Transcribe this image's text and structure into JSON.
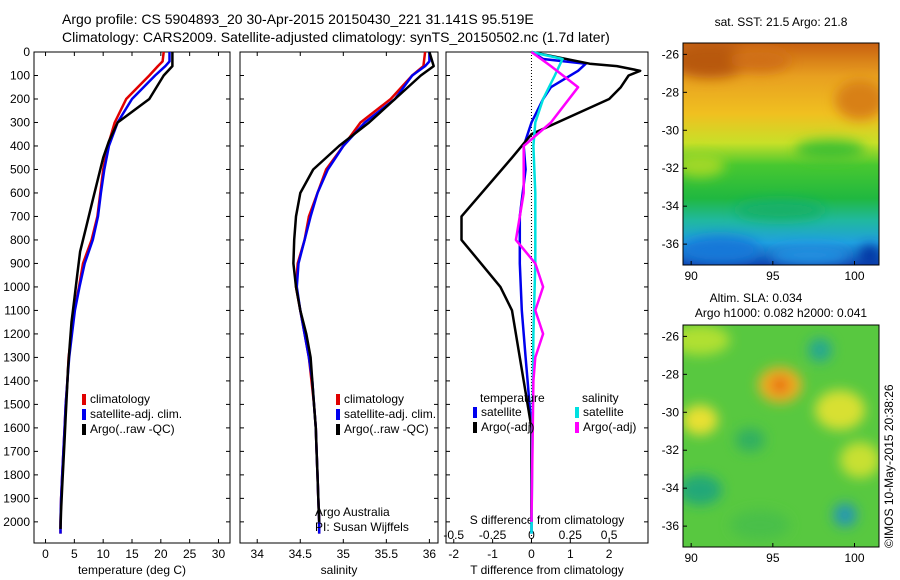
{
  "header": {
    "line1": "Argo profile: CS 5904893_20 30-Apr-2015 20150430_221 31.141S 95.519E",
    "line2": "Climatology: CARS2009. Satellite-adjusted climatology: synTS_20150502.nc (1.7d later)"
  },
  "colors": {
    "climatology": "#e00000",
    "satellite": "#0000ee",
    "argo": "#000000",
    "sat_s": "#00e0e0",
    "argo_s": "#ff00ff"
  },
  "chart_data": [
    {
      "type": "line",
      "id": "temperature",
      "xlabel": "temperature (deg C)",
      "ylabel": "",
      "xlim": [
        -2,
        32
      ],
      "ylim": [
        2090,
        0
      ],
      "xticks": [
        0,
        5,
        10,
        15,
        20,
        25,
        30
      ],
      "yticks": [
        0,
        100,
        200,
        300,
        400,
        500,
        600,
        700,
        800,
        900,
        1000,
        1100,
        1200,
        1300,
        1400,
        1500,
        1600,
        1700,
        1800,
        1900,
        2000
      ],
      "legend": [
        "climatology",
        "satellite-adj. clim.",
        "Argo(..raw -QC)"
      ],
      "series": [
        {
          "name": "climatology",
          "color": "#e00000",
          "points": [
            [
              20.5,
              0
            ],
            [
              20.3,
              40
            ],
            [
              19.5,
              60
            ],
            [
              18,
              100
            ],
            [
              14,
              200
            ],
            [
              12,
              300
            ],
            [
              10.8,
              400
            ],
            [
              10,
              500
            ],
            [
              9.5,
              600
            ],
            [
              9,
              700
            ],
            [
              8,
              800
            ],
            [
              6.5,
              900
            ],
            [
              5.8,
              1000
            ],
            [
              5,
              1100
            ],
            [
              4.5,
              1200
            ],
            [
              4,
              1300
            ],
            [
              3.8,
              1400
            ],
            [
              3.5,
              1500
            ],
            [
              3.3,
              1600
            ],
            [
              3.1,
              1700
            ],
            [
              2.9,
              1800
            ],
            [
              2.7,
              1900
            ],
            [
              2.6,
              2000
            ],
            [
              2.6,
              2050
            ]
          ]
        },
        {
          "name": "satellite-adj. clim.",
          "color": "#0000ee",
          "points": [
            [
              21.5,
              0
            ],
            [
              21.5,
              40
            ],
            [
              20.8,
              60
            ],
            [
              19,
              100
            ],
            [
              15,
              200
            ],
            [
              12.5,
              300
            ],
            [
              11,
              400
            ],
            [
              10.2,
              500
            ],
            [
              9.6,
              600
            ],
            [
              9.1,
              700
            ],
            [
              8.2,
              800
            ],
            [
              6.8,
              900
            ],
            [
              5.9,
              1000
            ],
            [
              5.1,
              1100
            ],
            [
              4.6,
              1200
            ],
            [
              4.1,
              1300
            ],
            [
              3.8,
              1400
            ],
            [
              3.5,
              1500
            ],
            [
              3.3,
              1600
            ],
            [
              3.1,
              1700
            ],
            [
              2.9,
              1800
            ],
            [
              2.7,
              1900
            ],
            [
              2.6,
              2000
            ],
            [
              2.6,
              2050
            ]
          ]
        },
        {
          "name": "Argo(..raw -QC)",
          "color": "#000000",
          "points": [
            [
              22,
              0
            ],
            [
              22,
              60
            ],
            [
              20.5,
              100
            ],
            [
              18,
              200
            ],
            [
              12.5,
              300
            ],
            [
              11,
              380
            ],
            [
              10,
              450
            ],
            [
              9,
              550
            ],
            [
              8,
              650
            ],
            [
              7,
              750
            ],
            [
              6,
              850
            ],
            [
              5.5,
              950
            ],
            [
              5,
              1050
            ],
            [
              4.5,
              1150
            ],
            [
              4.2,
              1250
            ],
            [
              3.9,
              1350
            ],
            [
              3.7,
              1450
            ],
            [
              3.5,
              1550
            ],
            [
              3.3,
              1650
            ],
            [
              3.1,
              1750
            ],
            [
              2.9,
              1850
            ],
            [
              2.7,
              1950
            ],
            [
              2.6,
              2030
            ]
          ]
        }
      ]
    },
    {
      "type": "line",
      "id": "salinity",
      "xlabel": "salinity",
      "ylabel": "",
      "xlim": [
        33.8,
        36.1
      ],
      "ylim": [
        2090,
        0
      ],
      "xticks": [
        34,
        34.5,
        35,
        35.5,
        36
      ],
      "legend": [
        "climatology",
        "satellite-adj. clim.",
        "Argo(..raw -QC)"
      ],
      "annotation": [
        "Argo Australia",
        "PI: Susan Wijffels"
      ],
      "series": [
        {
          "name": "climatology",
          "color": "#e00000",
          "points": [
            [
              35.95,
              0
            ],
            [
              35.93,
              60
            ],
            [
              35.8,
              100
            ],
            [
              35.55,
              200
            ],
            [
              35.2,
              300
            ],
            [
              35.0,
              400
            ],
            [
              34.8,
              500
            ],
            [
              34.7,
              600
            ],
            [
              34.6,
              700
            ],
            [
              34.55,
              800
            ],
            [
              34.47,
              900
            ],
            [
              34.45,
              1000
            ],
            [
              34.5,
              1100
            ],
            [
              34.55,
              1200
            ],
            [
              34.6,
              1300
            ],
            [
              34.63,
              1400
            ],
            [
              34.66,
              1500
            ],
            [
              34.68,
              1600
            ],
            [
              34.69,
              1700
            ],
            [
              34.7,
              1800
            ],
            [
              34.71,
              1900
            ],
            [
              34.72,
              2000
            ],
            [
              34.72,
              2050
            ]
          ]
        },
        {
          "name": "satellite-adj. clim.",
          "color": "#0000ee",
          "points": [
            [
              36,
              0
            ],
            [
              36,
              40
            ],
            [
              35.95,
              60
            ],
            [
              35.8,
              100
            ],
            [
              35.6,
              200
            ],
            [
              35.25,
              300
            ],
            [
              35.0,
              400
            ],
            [
              34.82,
              500
            ],
            [
              34.7,
              600
            ],
            [
              34.62,
              700
            ],
            [
              34.55,
              800
            ],
            [
              34.48,
              900
            ],
            [
              34.46,
              1000
            ],
            [
              34.5,
              1100
            ],
            [
              34.55,
              1200
            ],
            [
              34.6,
              1300
            ],
            [
              34.64,
              1400
            ],
            [
              34.66,
              1500
            ],
            [
              34.68,
              1600
            ],
            [
              34.69,
              1700
            ],
            [
              34.7,
              1800
            ],
            [
              34.71,
              1900
            ],
            [
              34.72,
              2000
            ],
            [
              34.72,
              2050
            ]
          ]
        },
        {
          "name": "Argo(..raw -QC)",
          "color": "#000000",
          "points": [
            [
              36,
              0
            ],
            [
              36.05,
              60
            ],
            [
              35.9,
              100
            ],
            [
              35.6,
              200
            ],
            [
              35.3,
              300
            ],
            [
              34.95,
              400
            ],
            [
              34.65,
              500
            ],
            [
              34.5,
              600
            ],
            [
              34.45,
              700
            ],
            [
              34.43,
              800
            ],
            [
              34.42,
              900
            ],
            [
              34.45,
              1000
            ],
            [
              34.5,
              1100
            ],
            [
              34.57,
              1200
            ],
            [
              34.62,
              1300
            ],
            [
              34.64,
              1400
            ],
            [
              34.66,
              1500
            ],
            [
              34.68,
              1600
            ],
            [
              34.69,
              1700
            ],
            [
              34.7,
              1800
            ],
            [
              34.71,
              1900
            ],
            [
              34.72,
              2000
            ]
          ]
        }
      ]
    },
    {
      "type": "line",
      "id": "difference",
      "xlabel": "T difference from climatology",
      "xlabel2": "S difference from climatology",
      "xlim": [
        -2.2,
        3.0
      ],
      "ylim": [
        2090,
        0
      ],
      "xticks_T": [
        -2,
        -1,
        0,
        1,
        2
      ],
      "xticks_S": [
        -0.5,
        -0.25,
        0,
        0.25,
        0.5
      ],
      "legend_temperature_title": "temperature",
      "legend_salinity_title": "salinity",
      "legend": [
        "satellite",
        "Argo(-adj)",
        "satellite",
        "Argo(-adj)"
      ],
      "series": [
        {
          "name": "satellite",
          "color": "#0000ee",
          "points": [
            [
              0,
              0
            ],
            [
              0.3,
              30
            ],
            [
              1.4,
              50
            ],
            [
              1.2,
              80
            ],
            [
              0.5,
              150
            ],
            [
              0.3,
              200
            ],
            [
              0,
              300
            ],
            [
              -0.2,
              400
            ],
            [
              -0.15,
              500
            ],
            [
              -0.3,
              700
            ],
            [
              -0.3,
              900
            ],
            [
              -0.25,
              1100
            ],
            [
              -0.2,
              1200
            ],
            [
              -0.15,
              1300
            ],
            [
              -0.1,
              1400
            ],
            [
              -0.05,
              1500
            ],
            [
              0,
              1600
            ],
            [
              0,
              2050
            ]
          ]
        },
        {
          "name": "Argo(-adj)",
          "color": "#000000",
          "points": [
            [
              0,
              0
            ],
            [
              1.5,
              50
            ],
            [
              2.2,
              60
            ],
            [
              2.8,
              80
            ],
            [
              2.5,
              100
            ],
            [
              2.3,
              150
            ],
            [
              2,
              200
            ],
            [
              0,
              350
            ],
            [
              -0.5,
              450
            ],
            [
              -1.8,
              700
            ],
            [
              -1.8,
              800
            ],
            [
              -1.3,
              900
            ],
            [
              -0.8,
              1000
            ],
            [
              -0.5,
              1100
            ],
            [
              -0.3,
              1300
            ],
            [
              -0.2,
              1400
            ],
            [
              0,
              1600
            ],
            [
              0,
              2000
            ]
          ]
        },
        {
          "name": "satellite",
          "color": "#00e0e0",
          "points": [
            [
              0,
              0
            ],
            [
              0.8,
              30
            ],
            [
              0.6,
              100
            ],
            [
              0.3,
              200
            ],
            [
              0.1,
              300
            ],
            [
              0.05,
              400
            ],
            [
              0.1,
              600
            ],
            [
              0.1,
              900
            ],
            [
              0.05,
              1200
            ],
            [
              0,
              2050
            ]
          ]
        },
        {
          "name": "Argo(-adj)",
          "color": "#ff00ff",
          "points": [
            [
              0,
              0
            ],
            [
              0.5,
              60
            ],
            [
              1.2,
              150
            ],
            [
              0.5,
              300
            ],
            [
              -0.2,
              400
            ],
            [
              -0.2,
              600
            ],
            [
              -0.4,
              800
            ],
            [
              0.1,
              900
            ],
            [
              0.3,
              1000
            ],
            [
              0.1,
              1100
            ],
            [
              0.3,
              1200
            ],
            [
              0.1,
              1300
            ],
            [
              0.05,
              1400
            ],
            [
              0,
              2000
            ]
          ]
        }
      ]
    },
    {
      "type": "heatmap",
      "id": "sst_map",
      "title": "sat. SST: 21.5  Argo: 21.8",
      "xticks": [
        90,
        95,
        100
      ],
      "yticks": [
        -26,
        -28,
        -30,
        -32,
        -34,
        -36
      ],
      "xlim": [
        89.5,
        101.5
      ],
      "ylim": [
        -37.1,
        -25.4
      ]
    },
    {
      "type": "heatmap",
      "id": "sla_map",
      "title": "Altim. SLA: 0.034",
      "subtitle": "Argo h1000: 0.082  h2000: 0.041",
      "xticks": [
        90,
        95,
        100
      ],
      "yticks": [
        -26,
        -28,
        -30,
        -32,
        -34,
        -36
      ],
      "xlim": [
        89.5,
        101.5
      ],
      "ylim": [
        -37.1,
        -25.4
      ]
    }
  ],
  "footer": {
    "stamp": "©IMOS 10-May-2015 20:38:26"
  }
}
